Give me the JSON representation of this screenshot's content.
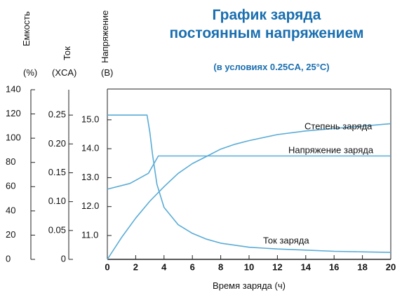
{
  "title_line1": "График заряда",
  "title_line2": "постоянным напряжением",
  "subtitle": "(в условиях 0.25CA, 25°C)",
  "axes": {
    "capacity": {
      "label": "Емкость",
      "unit": "(%)",
      "ticks": [
        "140",
        "120",
        "100",
        "80",
        "60",
        "40",
        "20",
        "0"
      ]
    },
    "current": {
      "label": "Ток",
      "unit": "(XCA)",
      "ticks": [
        "0.25",
        "0.20",
        "0.15",
        "0.10",
        "0.05",
        "0"
      ]
    },
    "voltage": {
      "label": "Напряжение",
      "unit": "(B)",
      "ticks": [
        "15.0",
        "14.0",
        "13.0",
        "12.0",
        "11.0"
      ]
    },
    "x": {
      "label": "Время заряда (ч)",
      "ticks": [
        "0",
        "2",
        "4",
        "6",
        "8",
        "10",
        "12",
        "14",
        "16",
        "18",
        "20"
      ]
    }
  },
  "chart_data": {
    "type": "line",
    "title": "График заряда постоянным напряжением",
    "subtitle": "(в условиях 0.25CA, 25°C)",
    "xlabel": "Время заряда (ч)",
    "xlim": [
      0,
      20
    ],
    "grid": false,
    "y_axes": [
      {
        "label": "Емкость",
        "unit": "(%)",
        "lim": [
          0,
          140
        ]
      },
      {
        "label": "Ток",
        "unit": "(XCA)",
        "lim": [
          0,
          0.3
        ]
      },
      {
        "label": "Напряжение",
        "unit": "(B)",
        "lim": [
          10.2,
          15.7
        ]
      }
    ],
    "series": [
      {
        "name": "Степень заряда",
        "axis": "Емкость",
        "x": [
          0,
          1,
          2,
          3,
          4,
          5,
          6,
          7,
          8,
          9,
          10,
          12,
          14,
          16,
          18,
          20
        ],
        "y": [
          0,
          18,
          34,
          48,
          60,
          71,
          79,
          85,
          91,
          95,
          98,
          103,
          106,
          108,
          110,
          112
        ]
      },
      {
        "name": "Напряжение заряда",
        "axis": "Напряжение",
        "x": [
          0,
          1.6,
          2.9,
          3.6,
          4,
          20
        ],
        "y": [
          12.6,
          12.8,
          13.15,
          13.75,
          13.75,
          13.75
        ]
      },
      {
        "name": "Ток заряда",
        "axis": "Ток",
        "x": [
          0,
          2.8,
          3.0,
          3.2,
          3.5,
          4,
          5,
          6,
          7,
          8,
          10,
          12,
          14,
          16,
          18,
          20
        ],
        "y": [
          0.25,
          0.25,
          0.22,
          0.18,
          0.13,
          0.09,
          0.06,
          0.045,
          0.035,
          0.028,
          0.021,
          0.018,
          0.016,
          0.014,
          0.013,
          0.012
        ]
      }
    ],
    "annotations": [
      "Степень заряда",
      "Напряжение заряда",
      "Ток заряда"
    ],
    "line_color": "#5aacd6"
  }
}
